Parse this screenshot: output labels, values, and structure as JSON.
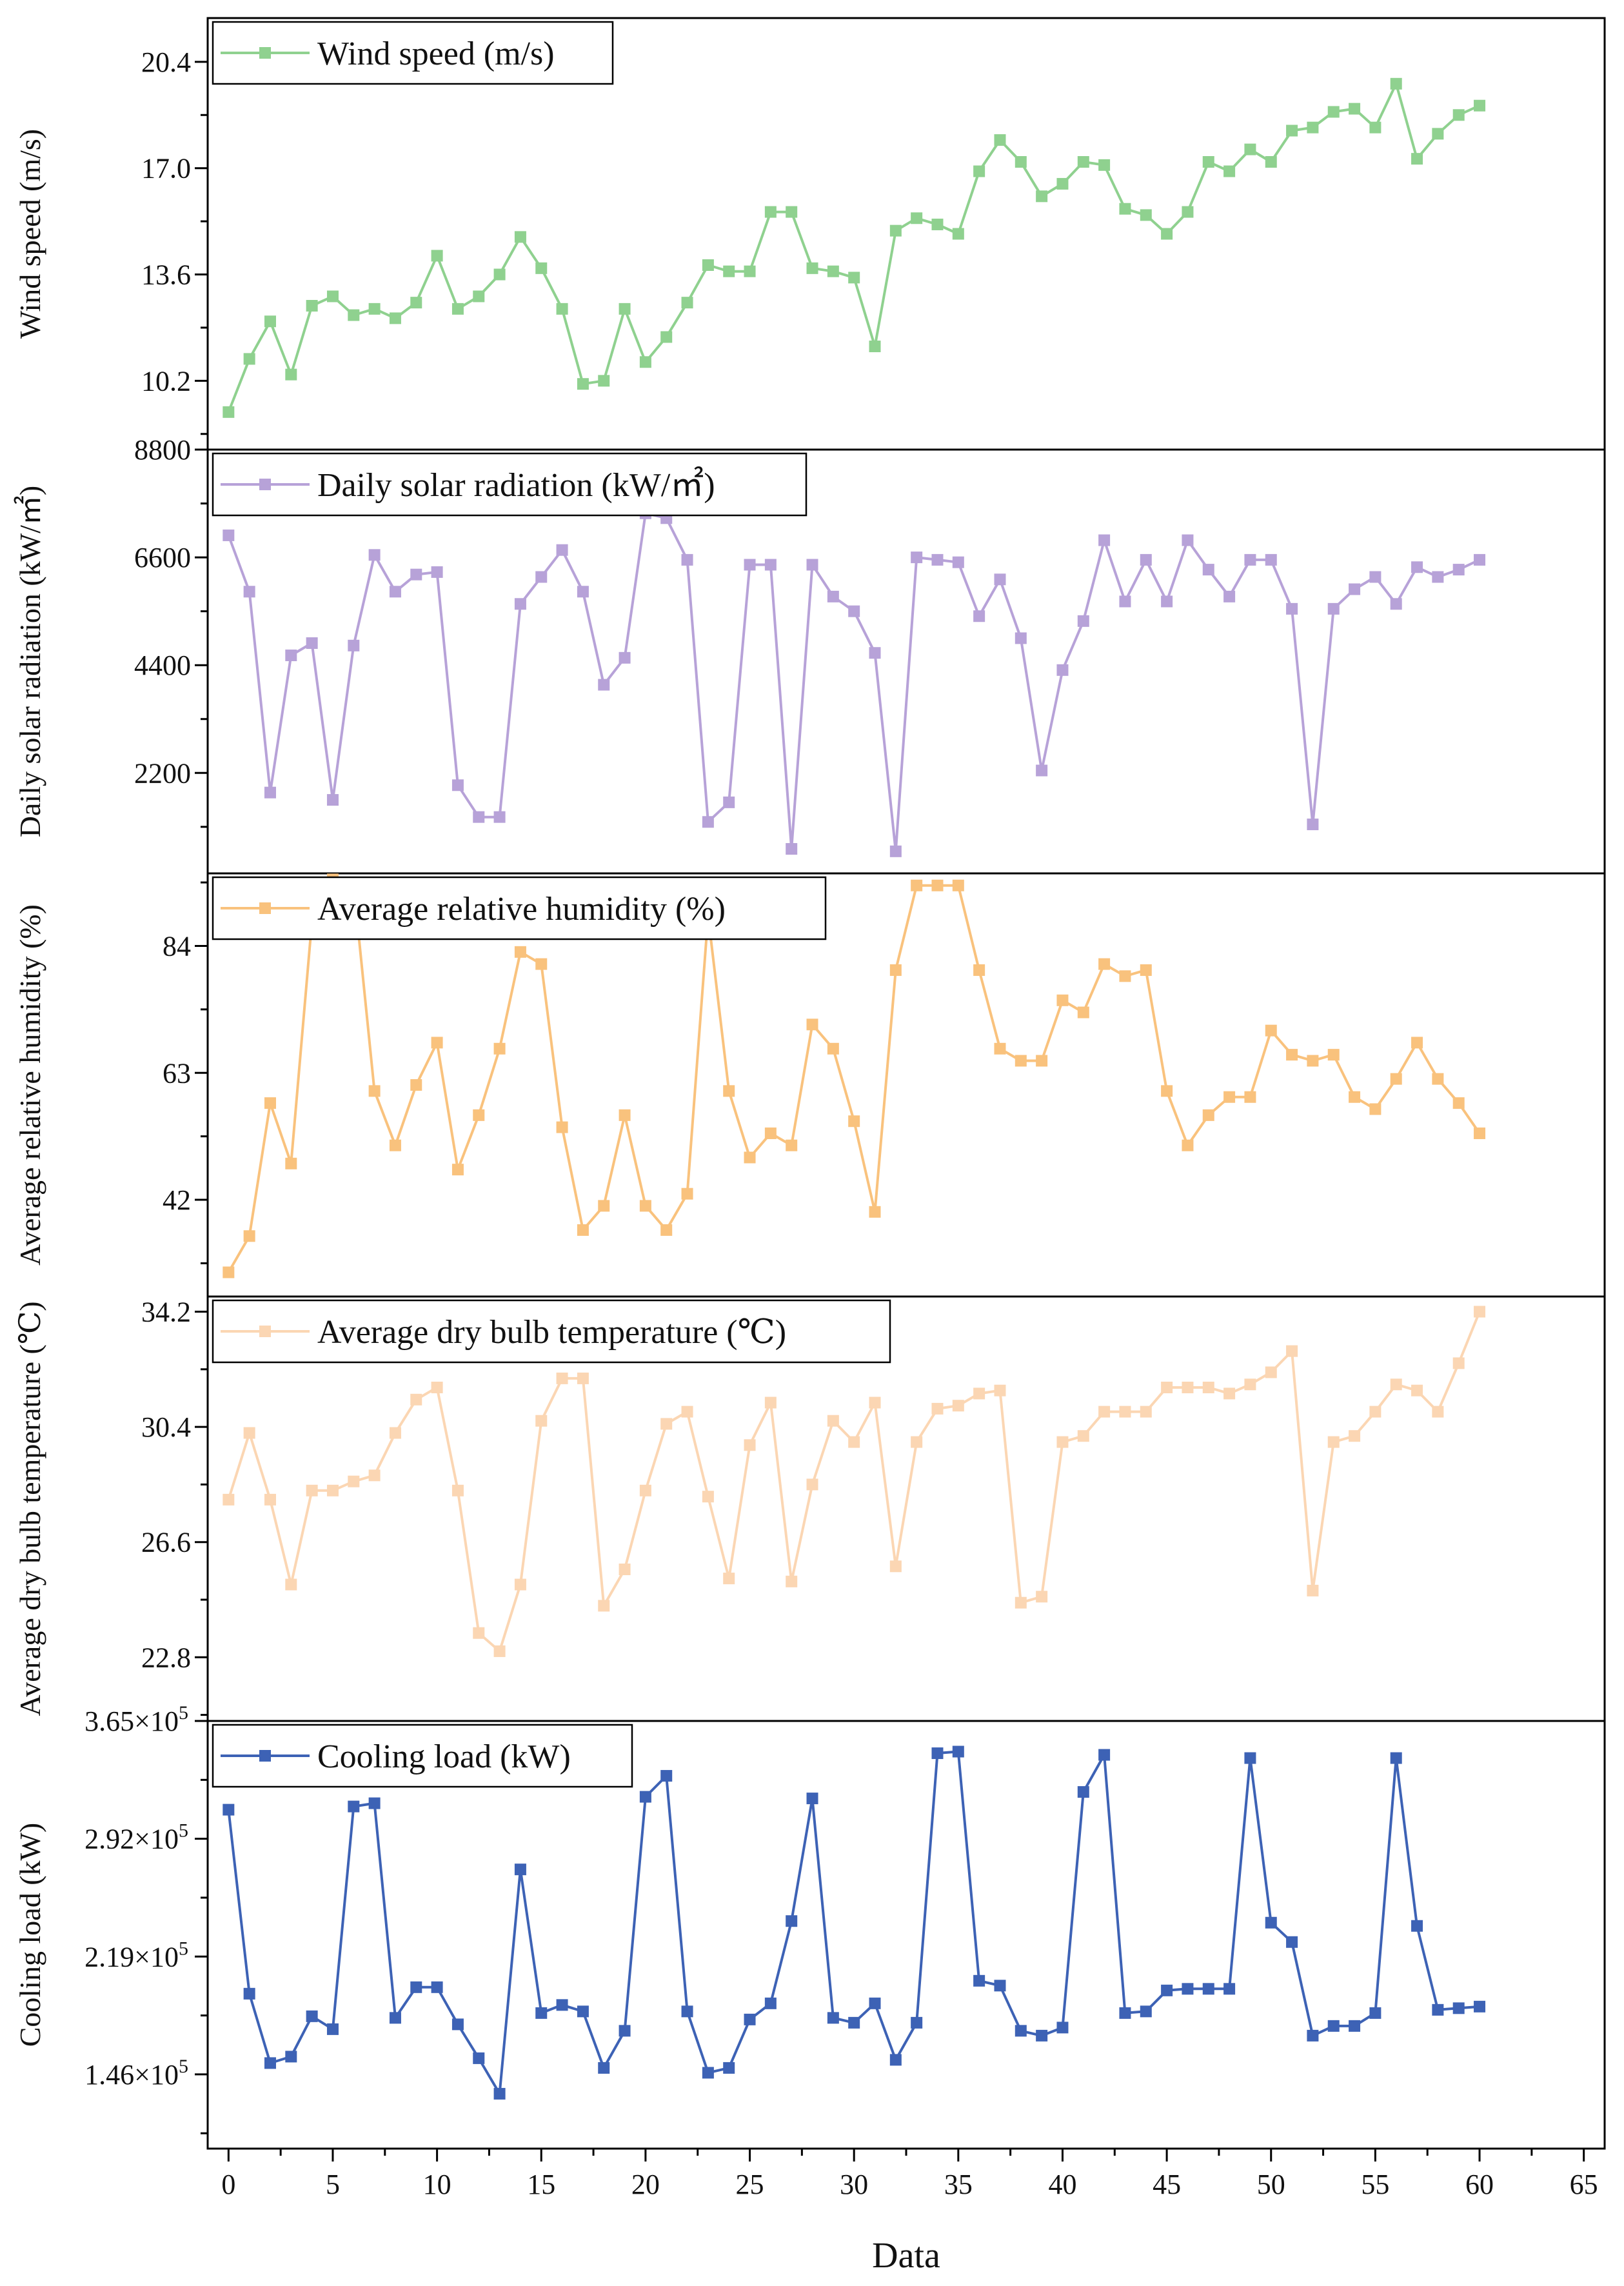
{
  "chart_data": {
    "type": "line",
    "xlabel": "Data",
    "x": [
      0,
      1,
      2,
      3,
      4,
      5,
      6,
      7,
      8,
      9,
      10,
      11,
      12,
      13,
      14,
      15,
      16,
      17,
      18,
      19,
      20,
      21,
      22,
      23,
      24,
      25,
      26,
      27,
      28,
      29,
      30,
      31,
      32,
      33,
      34,
      35,
      36,
      37,
      38,
      39,
      40,
      41,
      42,
      43,
      44,
      45,
      46,
      47,
      48,
      49,
      50,
      51,
      52,
      53,
      54,
      55,
      56,
      57,
      58,
      59,
      60
    ],
    "xlim": [
      -1,
      66
    ],
    "xticks": [
      0,
      5,
      10,
      15,
      20,
      25,
      30,
      35,
      40,
      45,
      50,
      55,
      60,
      65
    ],
    "panels": [
      {
        "id": "wind",
        "legend": "Wind speed (m/s)",
        "ylabel": "Wind speed (m/s)",
        "color": "#8fd18f",
        "ylim": [
          8.0,
          21.8
        ],
        "yticks": [
          10.2,
          13.6,
          17.0,
          20.4
        ],
        "ytick_labels": [
          "10.2",
          "13.6",
          "17.0",
          "20.4"
        ],
        "values": [
          9.2,
          10.9,
          12.1,
          10.4,
          12.6,
          12.9,
          12.3,
          12.5,
          12.2,
          12.7,
          14.2,
          12.5,
          12.9,
          13.6,
          14.8,
          13.8,
          12.5,
          10.1,
          10.2,
          12.5,
          10.8,
          11.6,
          12.7,
          13.9,
          13.7,
          13.7,
          15.6,
          15.6,
          13.8,
          13.7,
          13.5,
          11.3,
          15.0,
          15.4,
          15.2,
          14.9,
          16.9,
          17.9,
          17.2,
          16.1,
          16.5,
          17.2,
          17.1,
          15.7,
          15.5,
          14.9,
          15.6,
          17.2,
          16.9,
          17.6,
          17.2,
          18.2,
          18.3,
          18.8,
          18.9,
          18.3,
          19.7,
          17.3,
          18.1,
          18.7,
          19.0
        ]
      },
      {
        "id": "solar",
        "legend": "Daily solar radiation (kW/㎡)",
        "ylabel": "Daily solar radiation (kW/㎡)",
        "color": "#b7a2d8",
        "ylim": [
          150,
          8800
        ],
        "yticks": [
          2200,
          4400,
          6600,
          8800
        ],
        "ytick_labels": [
          "2200",
          "4400",
          "6600",
          "8800"
        ],
        "values": [
          7050,
          5900,
          1800,
          4600,
          4850,
          1650,
          4800,
          6650,
          5900,
          6250,
          6300,
          1950,
          1300,
          1300,
          5650,
          6200,
          6750,
          5900,
          4000,
          4550,
          7500,
          7400,
          6550,
          1200,
          1600,
          6450,
          6450,
          650,
          6450,
          5800,
          5500,
          4650,
          600,
          6600,
          6550,
          6500,
          5400,
          6150,
          4950,
          2250,
          4300,
          5300,
          6950,
          5700,
          6550,
          5700,
          6950,
          6350,
          5800,
          6550,
          6550,
          5550,
          1150,
          5550,
          5950,
          6200,
          5650,
          6400,
          6200,
          6350,
          6550
        ]
      },
      {
        "id": "humidity",
        "legend": "Average relative humidity (%)",
        "ylabel": "Average relative humidity (%)",
        "color": "#f9c27d",
        "ylim": [
          26,
          96
        ],
        "yticks": [
          42,
          63,
          84
        ],
        "ytick_labels": [
          "42",
          "63",
          "84"
        ],
        "values": [
          30,
          36,
          58,
          48,
          88,
          95,
          94,
          60,
          51,
          61,
          68,
          47,
          56,
          67,
          83,
          81,
          54,
          37,
          41,
          56,
          41,
          37,
          43,
          89,
          60,
          49,
          53,
          51,
          71,
          67,
          55,
          40,
          80,
          94,
          94,
          94,
          80,
          67,
          65,
          65,
          75,
          73,
          81,
          79,
          80,
          60,
          51,
          56,
          59,
          59,
          70,
          66,
          65,
          66,
          59,
          57,
          62,
          68,
          62,
          58,
          53
        ]
      },
      {
        "id": "temperature",
        "legend": "Average dry bulb temperature (℃)",
        "ylabel": "Average dry bulb temperature (℃)",
        "color": "#fbd6b3",
        "ylim": [
          20.7,
          34.7
        ],
        "yticks": [
          22.8,
          26.6,
          30.4,
          34.2
        ],
        "ytick_labels": [
          "22.8",
          "26.6",
          "30.4",
          "34.2"
        ],
        "values": [
          28.0,
          30.2,
          28.0,
          25.2,
          28.3,
          28.3,
          28.6,
          28.8,
          30.2,
          31.3,
          31.7,
          28.3,
          23.6,
          23.0,
          25.2,
          30.6,
          32.0,
          32.0,
          24.5,
          25.7,
          28.3,
          30.5,
          30.9,
          28.1,
          25.4,
          29.8,
          31.2,
          25.3,
          28.5,
          30.6,
          29.9,
          31.2,
          25.8,
          29.9,
          31.0,
          31.1,
          31.5,
          31.6,
          24.6,
          24.8,
          29.9,
          30.1,
          30.9,
          30.9,
          30.9,
          31.7,
          31.7,
          31.7,
          31.5,
          31.8,
          32.2,
          32.9,
          25.0,
          29.9,
          30.1,
          30.9,
          31.8,
          31.6,
          30.9,
          32.5,
          34.2
        ]
      },
      {
        "id": "cooling",
        "legend": "Cooling load (kW)",
        "ylabel": "Cooling load (kW)",
        "color": "#3d62b5",
        "ylim": [
          100000,
          365000
        ],
        "yticks": [
          146000,
          219000,
          292000,
          365000
        ],
        "ytick_labels": [
          [
            "1.46",
            "5"
          ],
          [
            "2.19",
            "5"
          ],
          [
            "2.92",
            "5"
          ],
          [
            "3.65",
            "5"
          ]
        ],
        "ytick_base": "×10",
        "values": [
          310000,
          196000,
          153000,
          157000,
          182000,
          174000,
          312000,
          314000,
          181000,
          200000,
          200000,
          177000,
          156000,
          134000,
          273000,
          184000,
          189000,
          185000,
          150000,
          173000,
          318000,
          331000,
          185000,
          147000,
          150000,
          180000,
          190000,
          241000,
          317000,
          181000,
          178000,
          190000,
          155000,
          178000,
          345000,
          346000,
          204000,
          201000,
          173000,
          170000,
          175000,
          321000,
          344000,
          184000,
          185000,
          198000,
          199000,
          199000,
          199000,
          342000,
          240000,
          228000,
          170000,
          176000,
          176000,
          184000,
          342000,
          238000,
          186000,
          187000,
          188000
        ]
      }
    ]
  }
}
